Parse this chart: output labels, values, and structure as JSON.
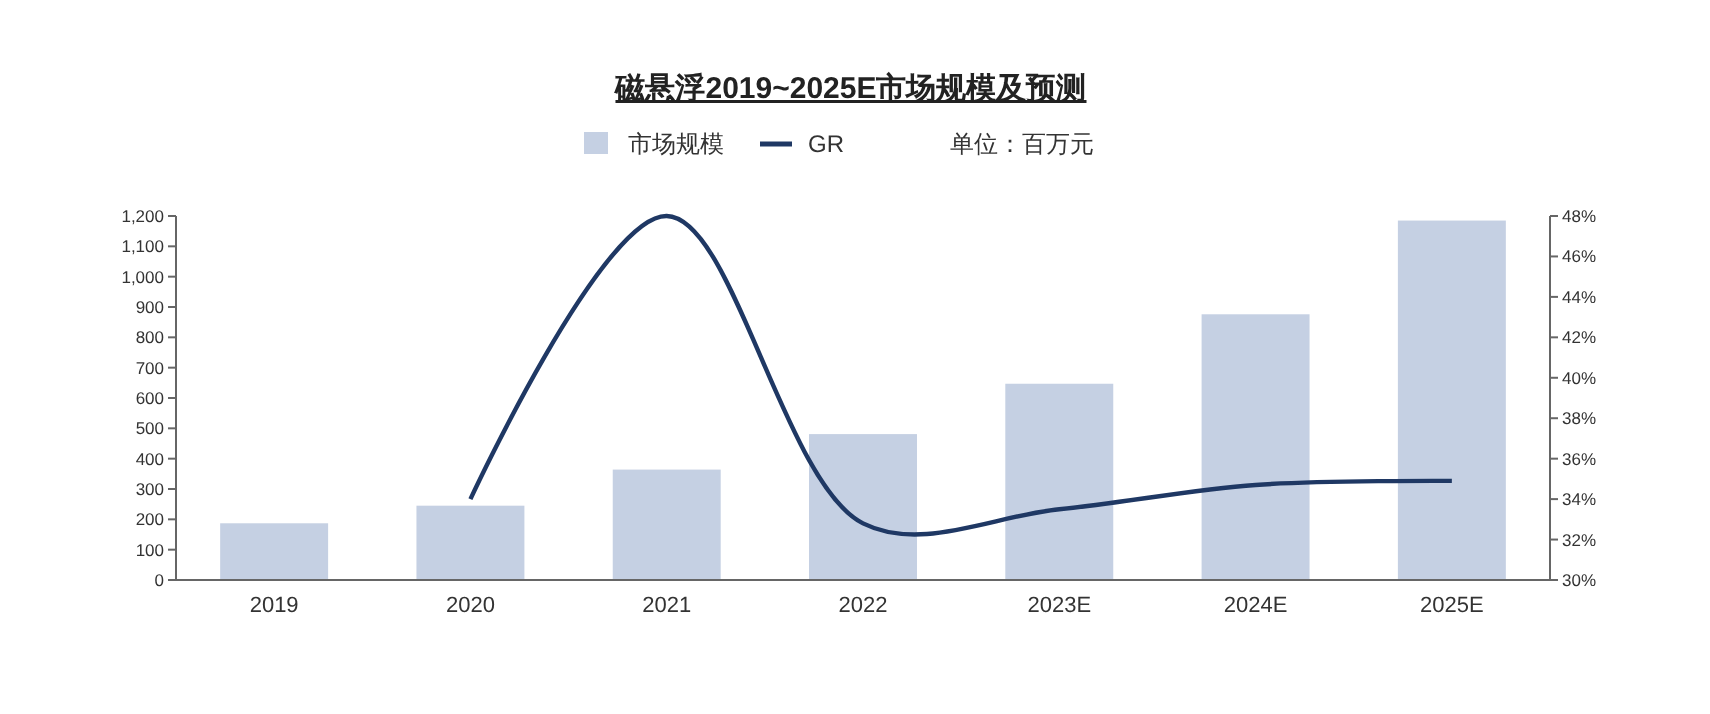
{
  "chart_data": {
    "type": "bar",
    "title": "磁悬浮2019~2025E市场规模及预测",
    "categories": [
      "2019",
      "2020",
      "2021",
      "2022",
      "2023E",
      "2024E",
      "2025E"
    ],
    "series": [
      {
        "name": "市场规模",
        "color": "#c5d0e3",
        "values": [
          187,
          245,
          364,
          481,
          647,
          876,
          1185
        ]
      },
      {
        "name": "GR",
        "type": "line",
        "axis": "y2",
        "color": "#1f3864",
        "values": [
          null,
          34.0,
          48.0,
          32.8,
          33.5,
          34.7,
          34.9
        ]
      }
    ],
    "ylim": [
      0,
      1200
    ],
    "yticks": [
      {
        "value": 0,
        "label": "0"
      },
      {
        "value": 100,
        "label": "100"
      },
      {
        "value": 200,
        "label": "200"
      },
      {
        "value": 300,
        "label": "300"
      },
      {
        "value": 400,
        "label": "400"
      },
      {
        "value": 500,
        "label": "500"
      },
      {
        "value": 600,
        "label": "600"
      },
      {
        "value": 700,
        "label": "700"
      },
      {
        "value": 800,
        "label": "800"
      },
      {
        "value": 900,
        "label": "900"
      },
      {
        "value": 1000,
        "label": "1,000"
      },
      {
        "value": 1100,
        "label": "1,100"
      },
      {
        "value": 1200,
        "label": "1,200"
      }
    ],
    "y2lim": [
      30,
      48
    ],
    "y2ticks": [
      {
        "value": 30,
        "label": "30%"
      },
      {
        "value": 32,
        "label": "32%"
      },
      {
        "value": 34,
        "label": "34%"
      },
      {
        "value": 36,
        "label": "36%"
      },
      {
        "value": 38,
        "label": "38%"
      },
      {
        "value": 40,
        "label": "40%"
      },
      {
        "value": 42,
        "label": "42%"
      },
      {
        "value": 44,
        "label": "44%"
      },
      {
        "value": 46,
        "label": "46%"
      },
      {
        "value": 48,
        "label": "48%"
      }
    ],
    "legend": "top",
    "grid": false,
    "annotations": [
      "单位：百万元"
    ]
  }
}
